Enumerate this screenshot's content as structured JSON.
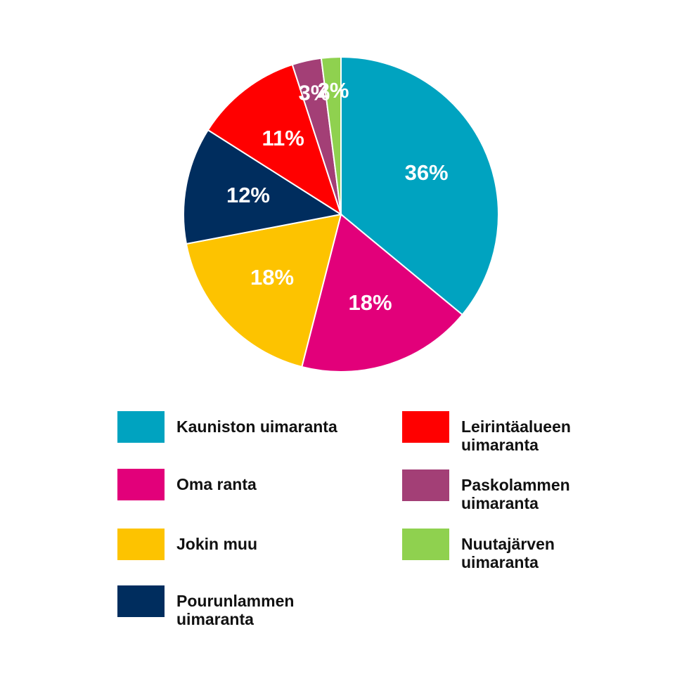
{
  "chart_data": {
    "type": "pie",
    "categories": [
      "Kauniston uimaranta",
      "Oma ranta",
      "Jokin muu",
      "Pourunlammen uimaranta",
      "Leirintäalueen uimaranta",
      "Paskolammen uimaranta",
      "Nuutajärven uimaranta"
    ],
    "values": [
      36,
      18,
      18,
      12,
      11,
      3,
      2
    ],
    "value_labels": [
      "36%",
      "18%",
      "18%",
      "12%",
      "11%",
      "3%",
      "2%"
    ],
    "colors": [
      "#00a3c0",
      "#e2007a",
      "#fdc300",
      "#002d5e",
      "#ff0000",
      "#a33f76",
      "#8fd14f"
    ],
    "legend": "bottom"
  }
}
